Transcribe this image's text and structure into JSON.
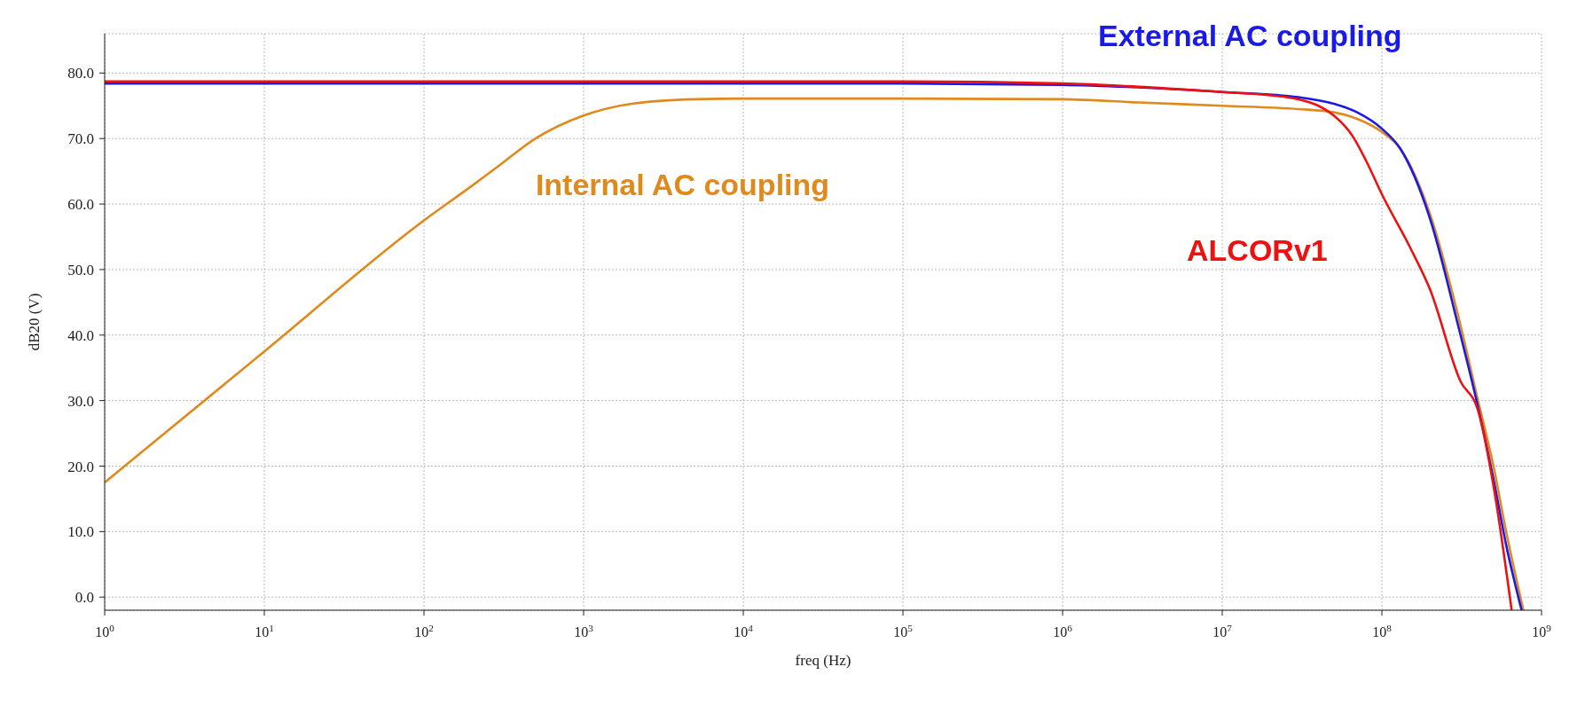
{
  "chart_data": {
    "type": "line",
    "xlabel": "freq (Hz)",
    "ylabel": "dB20 (V)",
    "log": "x",
    "grid": true,
    "legend": false,
    "marker": "none",
    "line_style": "solid",
    "xlim": [
      1,
      1000000000
    ],
    "ylim": [
      -2,
      86
    ],
    "xticks": [
      {
        "value": 1,
        "label": "10$^{0}$"
      },
      {
        "value": 10,
        "label": "10$^{1}$"
      },
      {
        "value": 100,
        "label": "10$^{2}$"
      },
      {
        "value": 1000,
        "label": "10$^{3}$"
      },
      {
        "value": 10000,
        "label": "10$^{4}$"
      },
      {
        "value": 100000,
        "label": "10$^{5}$"
      },
      {
        "value": 1000000,
        "label": "10$^{6}$"
      },
      {
        "value": 10000000,
        "label": "10$^{7}$"
      },
      {
        "value": 100000000,
        "label": "10$^{8}$"
      },
      {
        "value": 1000000000,
        "label": "10$^{9}$"
      }
    ],
    "yticks": [
      {
        "value": 0,
        "label": "0.0"
      },
      {
        "value": 10,
        "label": "10.0"
      },
      {
        "value": 20,
        "label": "20.0"
      },
      {
        "value": 30,
        "label": "30.0"
      },
      {
        "value": 40,
        "label": "40.0"
      },
      {
        "value": 50,
        "label": "50.0"
      },
      {
        "value": 60,
        "label": "60.0"
      },
      {
        "value": 70,
        "label": "70.0"
      },
      {
        "value": 80,
        "label": "80.0"
      }
    ],
    "series": [
      {
        "name": "Internal AC coupling",
        "color": "#e08a1e",
        "x": [
          1,
          10,
          100,
          200,
          300,
          500,
          1000,
          2000,
          5000,
          10000,
          100000,
          1000000,
          3000000,
          10000000,
          30000000,
          50000000,
          70000000,
          100000000,
          130000000,
          200000000,
          300000000,
          400000000,
          500000000,
          600000000,
          770000000
        ],
        "values": [
          17.5,
          37.5,
          57.5,
          62.8,
          66,
          70,
          73.5,
          75.3,
          76,
          76.1,
          76.1,
          76,
          75.5,
          75,
          74.5,
          74,
          73,
          71,
          68.5,
          58.5,
          43,
          30,
          20,
          10,
          -2
        ]
      },
      {
        "name": "External AC coupling",
        "color": "#1a1ae6",
        "x": [
          1,
          100000,
          1000000,
          3000000,
          10000000,
          30000000,
          50000000,
          70000000,
          100000000,
          130000000,
          200000000,
          300000000,
          400000000,
          500000000,
          600000000,
          750000000
        ],
        "values": [
          78.4,
          78.4,
          78.2,
          77.8,
          77.1,
          76.3,
          75.3,
          74,
          71.5,
          68.5,
          57.8,
          41.5,
          29,
          18,
          8,
          -2
        ]
      },
      {
        "name": "ALCORv1",
        "color": "#ee1111",
        "x": [
          1,
          100000,
          1000000,
          3000000,
          10000000,
          20000000,
          30000000,
          40000000,
          50000000,
          65000000,
          80000000,
          100000000,
          150000000,
          200000000,
          310000000,
          400000000,
          500000000,
          650000000
        ],
        "values": [
          78.7,
          78.7,
          78.4,
          77.9,
          77.1,
          76.6,
          76,
          75,
          73.5,
          70.5,
          66.5,
          61.5,
          53.4,
          47,
          33,
          28.5,
          17,
          -2
        ]
      }
    ]
  }
}
